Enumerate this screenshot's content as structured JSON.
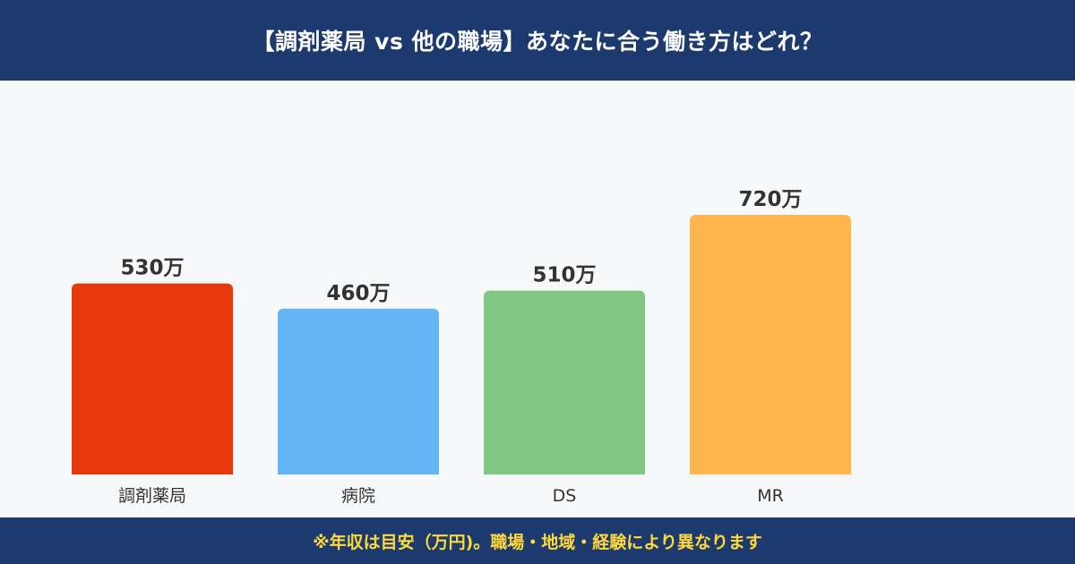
{
  "header": {
    "title": "【調剤薬局 vs 他の職場】あなたに合う働き方はどれ？"
  },
  "footer": {
    "note": "※年収は目安（万円)。職場・地域・経験により異なります"
  },
  "colors": {
    "header_bg": "#1c3a6e",
    "footer_text": "#ffd93b",
    "bars": [
      "#e8390e",
      "#64b5f6",
      "#81c784",
      "#ffb74d"
    ]
  },
  "chart_data": {
    "type": "bar",
    "title": "",
    "xlabel": "",
    "ylabel": "",
    "categories": [
      "調剤薬局",
      "病院",
      "DS",
      "MR"
    ],
    "values": [
      530,
      460,
      510,
      720
    ],
    "value_labels": [
      "530万",
      "460万",
      "510万",
      "720万"
    ],
    "ylim": [
      0,
      740
    ],
    "grid": false,
    "legend": "none"
  }
}
